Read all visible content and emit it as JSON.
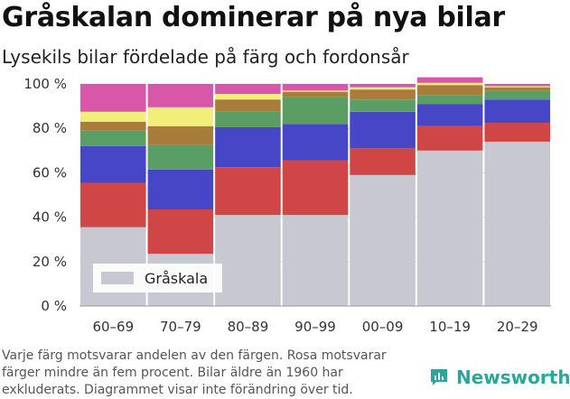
{
  "title": "Gråskalan dominerar på nya bilar",
  "subtitle": "Lysekils bilar fördelade på färg och fordonsår",
  "footnote": [
    "Varje färg motsvarar andelen av den färgen. Rosa motsvarar",
    "färger mindre än fem procent. Bilar äldre än 1960 har",
    "exkluderats. Diagrammet visar inte förändring över tid."
  ],
  "brand": {
    "name": "Newsworthy",
    "logo_icon": "newsworthy-bar-chart-icon"
  },
  "chart_data": {
    "type": "bar",
    "stacked": true,
    "categories": [
      "60–69",
      "70–79",
      "80–89",
      "90–99",
      "00–09",
      "10–19",
      "20–29"
    ],
    "ylim": [
      0,
      100
    ],
    "yticks": [
      0,
      20,
      40,
      60,
      80,
      100
    ],
    "ytick_suffix": " %",
    "grid": true,
    "legend": {
      "position": "bottom-left",
      "entries": [
        "Gråskala"
      ]
    },
    "series": [
      {
        "name": "Gråskala",
        "color": "#c8c8d2",
        "values": [
          35.5,
          23.5,
          41,
          41,
          59,
          70,
          74
        ]
      },
      {
        "name": "",
        "color": "#d04545",
        "values": [
          20,
          20,
          21.5,
          24.5,
          12,
          11,
          8.5
        ]
      },
      {
        "name": "",
        "color": "#4646c6",
        "values": [
          16.5,
          18,
          18,
          16.5,
          16.5,
          10,
          10.5
        ]
      },
      {
        "name": "",
        "color": "#5b9e65",
        "values": [
          7,
          11,
          7,
          12,
          5.5,
          4,
          4
        ]
      },
      {
        "name": "",
        "color": "#a87c3a",
        "values": [
          4,
          8.5,
          5.5,
          2.5,
          4.5,
          4.5,
          1.5
        ]
      },
      {
        "name": "",
        "color": "#f2ee7a",
        "values": [
          4.5,
          8.5,
          2.5,
          0.5,
          1,
          1,
          0.5
        ]
      },
      {
        "name": "",
        "color": "#d957a8",
        "values": [
          12.5,
          10.5,
          4.5,
          3,
          1.5,
          2.5,
          1
        ]
      }
    ]
  }
}
